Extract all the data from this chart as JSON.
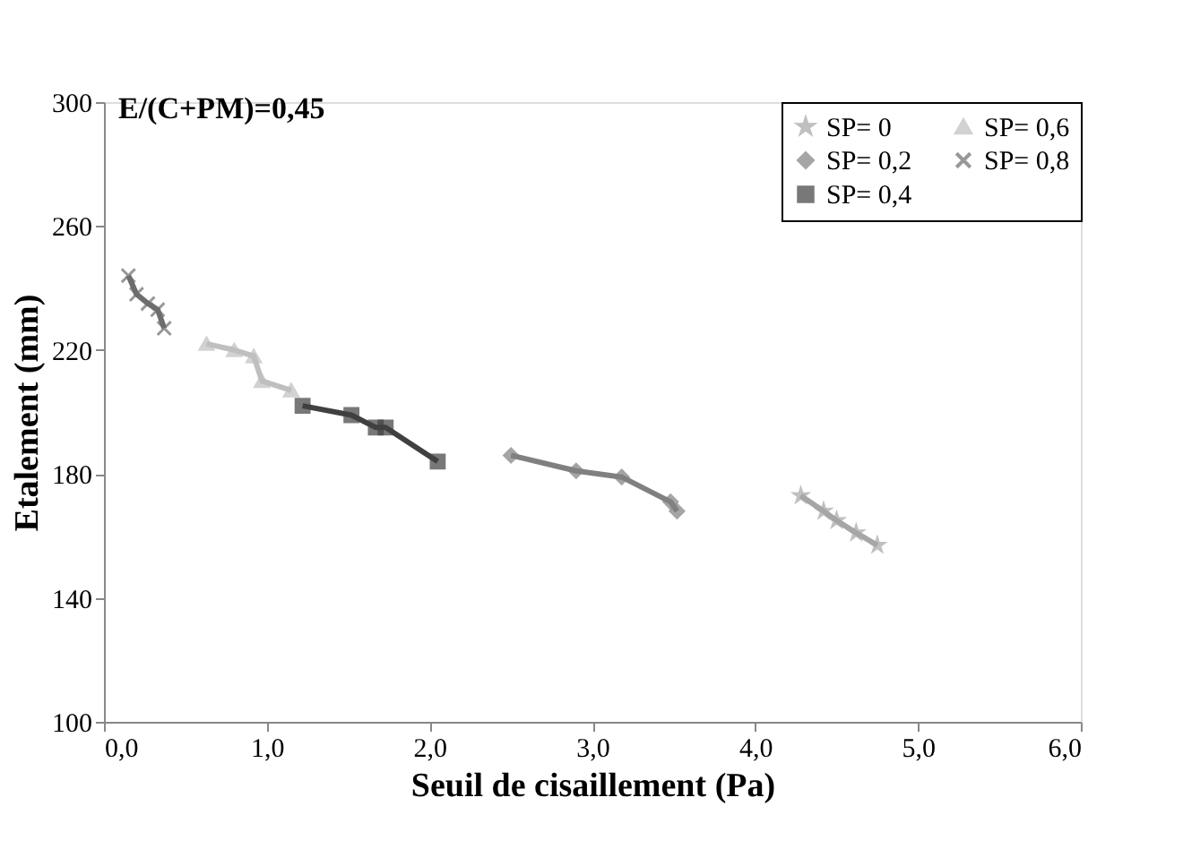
{
  "chart_data": {
    "type": "line",
    "title": "E/(C+PM)=0,45",
    "xlabel": "Seuil de cisaillement  (Pa)",
    "ylabel": "Etalement (mm)",
    "xlim": [
      0,
      6
    ],
    "xticks": [
      {
        "value": 0,
        "label": "0,0"
      },
      {
        "value": 1,
        "label": "1,0"
      },
      {
        "value": 2,
        "label": "2,0"
      },
      {
        "value": 3,
        "label": "3,0"
      },
      {
        "value": 4,
        "label": "4,0"
      },
      {
        "value": 5,
        "label": "5,0"
      },
      {
        "value": 6,
        "label": "6,0"
      }
    ],
    "ylim": [
      100,
      300
    ],
    "yticks": [
      100,
      140,
      180,
      220,
      260,
      300
    ],
    "grid": false,
    "legend": "top right",
    "series": [
      {
        "name": "SP= 0",
        "color": "#a6a6a6",
        "marker": "star",
        "x": [
          4.28,
          4.42,
          4.5,
          4.62,
          4.75
        ],
        "values": [
          173,
          168,
          165,
          161,
          157
        ]
      },
      {
        "name": "SP= 0,2",
        "color": "#808080",
        "marker": "diamond",
        "x": [
          2.5,
          2.9,
          3.18,
          3.48,
          3.52
        ],
        "values": [
          186,
          181,
          179,
          171,
          168
        ]
      },
      {
        "name": "SP= 0,4",
        "color": "#404040",
        "marker": "square",
        "x": [
          1.22,
          1.52,
          1.67,
          1.73,
          2.05
        ],
        "values": [
          202,
          199,
          195,
          195,
          184
        ]
      },
      {
        "name": "SP= 0,6",
        "color": "#bfbfbf",
        "marker": "triangle",
        "x": [
          0.63,
          0.8,
          0.92,
          0.97,
          1.15
        ],
        "values": [
          222,
          220,
          218,
          210,
          207
        ]
      },
      {
        "name": "SP= 0,8",
        "color": "#6d6d6d",
        "marker": "cross",
        "x": [
          0.15,
          0.2,
          0.27,
          0.33,
          0.37
        ],
        "values": [
          244,
          238,
          235,
          233,
          227
        ]
      }
    ]
  }
}
